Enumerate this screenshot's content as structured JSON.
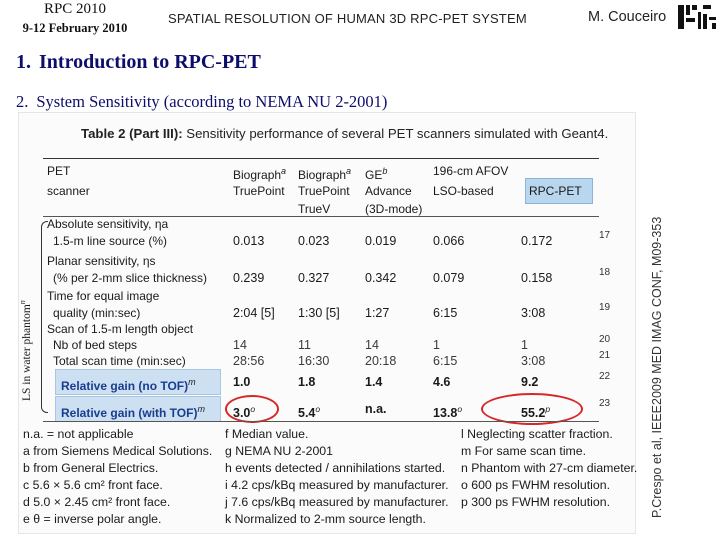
{
  "header": {
    "conference": "RPC 2010",
    "dates": "9-12 February 2010",
    "title": "SPATIAL RESOLUTION OF HUMAN 3D RPC-PET SYSTEM",
    "author": "M. Couceiro"
  },
  "outline": [
    {
      "num": "1.",
      "label": "Introduction to RPC-PET"
    },
    {
      "num": "2.",
      "label": "System Sensitivity (according to NEMA NU 2-2001)"
    }
  ],
  "citation": "P.Crespo et al, IEEE2009 MED IMAG CONF, M09-353",
  "table": {
    "caption_bold": "Table 2 (Part III):",
    "caption_rest": " Sensitivity performance of several PET scanners simulated with Geant4.",
    "col_header_left": [
      "PET",
      "scanner"
    ],
    "columns": [
      {
        "lines": [
          "Biograph",
          "TruePoint"
        ],
        "sup": "a"
      },
      {
        "lines": [
          "Biograph",
          "TruePoint",
          "TrueV"
        ],
        "sup": "a"
      },
      {
        "lines": [
          "GE",
          "Advance",
          "(3D-mode)"
        ],
        "sup": "b"
      },
      {
        "lines": [
          "196-cm AFOV",
          "LSO-based"
        ],
        "sup": ""
      },
      {
        "lines": [
          "RPC-PET"
        ],
        "sup": ""
      }
    ],
    "axis_label": "LS in water phantom",
    "axis_sup": "n",
    "rows": [
      {
        "label": "Absolute sensitivity, ηa",
        "values": [],
        "num": ""
      },
      {
        "label": "1.5-m line source (%)",
        "values": [
          "0.013",
          "0.023",
          "0.019",
          "0.066",
          "0.172"
        ],
        "num": "17"
      },
      {
        "label": "Planar sensitivity, ηs",
        "values": [],
        "num": ""
      },
      {
        "label": "(% per 2-mm slice thickness)",
        "values": [
          "0.239",
          "0.327",
          "0.342",
          "0.079",
          "0.158"
        ],
        "num": "18"
      },
      {
        "label": "Time for equal image",
        "values": [],
        "num": ""
      },
      {
        "label": "quality (min:sec)",
        "values": [
          "2:04 [5]",
          "1:30 [5]",
          "1:27",
          "6:15",
          "3:08"
        ],
        "num": "19"
      },
      {
        "label": "Scan of 1.5-m length object",
        "values": [],
        "num": ""
      },
      {
        "label": "Nb of bed steps",
        "values": [
          "14",
          "11",
          "14",
          "1",
          "1"
        ],
        "num": "20"
      },
      {
        "label": "Total scan time (min:sec)",
        "values": [
          "28:56",
          "16:30",
          "20:18",
          "6:15",
          "3:08"
        ],
        "num": "21"
      },
      {
        "label": "Relative gain (no TOF)",
        "sup": "m",
        "values": [
          "1.0",
          "1.8",
          "1.4",
          "4.6",
          "9.2"
        ],
        "num": "22",
        "highlight": true
      },
      {
        "label": "Relative gain (with TOF)",
        "sup": "m",
        "values": [
          "3.0",
          "5.4",
          "n.a.",
          "13.8",
          "55.2"
        ],
        "value_sups": [
          "o",
          "o",
          "",
          "o",
          "p"
        ],
        "num": "23",
        "highlight": true
      }
    ],
    "footnotes_left": [
      "n.a. = not applicable",
      "a from Siemens Medical Solutions.",
      "b from General Electrics.",
      "c 5.6 × 5.6 cm² front face.",
      "d 5.0 × 2.45 cm² front face.",
      "e θ = inverse polar angle."
    ],
    "footnotes_mid": [
      "f Median value.",
      "g NEMA NU 2-2001",
      "h events detected / annihilations started.",
      "i 4.2 cps/kBq measured by manufacturer.",
      "j 7.6 cps/kBq measured by manufacturer.",
      "k Normalized to 2-mm source length."
    ],
    "footnotes_right": [
      "l Neglecting scatter fraction.",
      "m For same scan time.",
      "n Phantom with 27-cm diameter.",
      "o 600 ps FWHM resolution.",
      "p 300 ps FWHM resolution."
    ]
  },
  "colors": {
    "heading": "#0d0d6b",
    "rpc_header_fill": "#b8d6ee",
    "gain_row_fill": "#cce0f2",
    "oval": "#d62828"
  }
}
